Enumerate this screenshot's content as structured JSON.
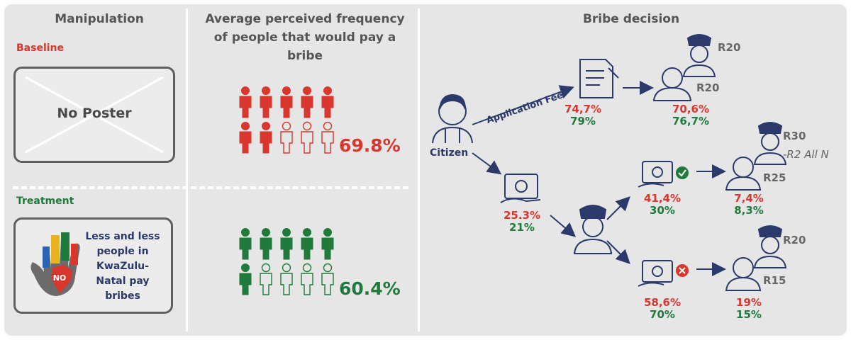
{
  "columns": {
    "manipulation": "Manipulation",
    "frequency": "Average perceived frequency of people that would pay a bribe",
    "decision": "Bribe decision"
  },
  "baseline": {
    "label": "Baseline",
    "poster_text": "No Poster",
    "percent": "69.8%",
    "paying_icons": 7,
    "total_icons": 10
  },
  "treatment": {
    "label": "Treatment",
    "poster_text": "Less and less people in KwaZulu-Natal pay bribes",
    "poster_badge": "NO",
    "percent": "60.4%",
    "paying_icons": 6,
    "total_icons": 10
  },
  "flow": {
    "citizen_label": "Citizen",
    "application_fee_label": "Application Fee",
    "fee_red": "74,7%",
    "fee_green": "79%",
    "fee_official_red": "70,6%",
    "fee_official_green": "76,7%",
    "fee_r_top": "R20",
    "fee_r_bottom": "R20",
    "bribe_red": "25.3%",
    "bribe_green": "21%",
    "accept_red": "41,4%",
    "accept_green": "30%",
    "accept_official_red": "7,4%",
    "accept_official_green": "8,3%",
    "accept_r_top": "R30",
    "accept_r_note": "-R2 All N",
    "accept_r_bottom": "R25",
    "reject_red": "58,6%",
    "reject_green": "70%",
    "reject_official_red": "19%",
    "reject_official_green": "15%",
    "reject_r_top": "R20",
    "reject_r_bottom": "R15"
  },
  "colors": {
    "red": "#d9362d",
    "green": "#1f7a3b",
    "navy": "#2b3a6b",
    "panel": "#e6e6e7"
  }
}
